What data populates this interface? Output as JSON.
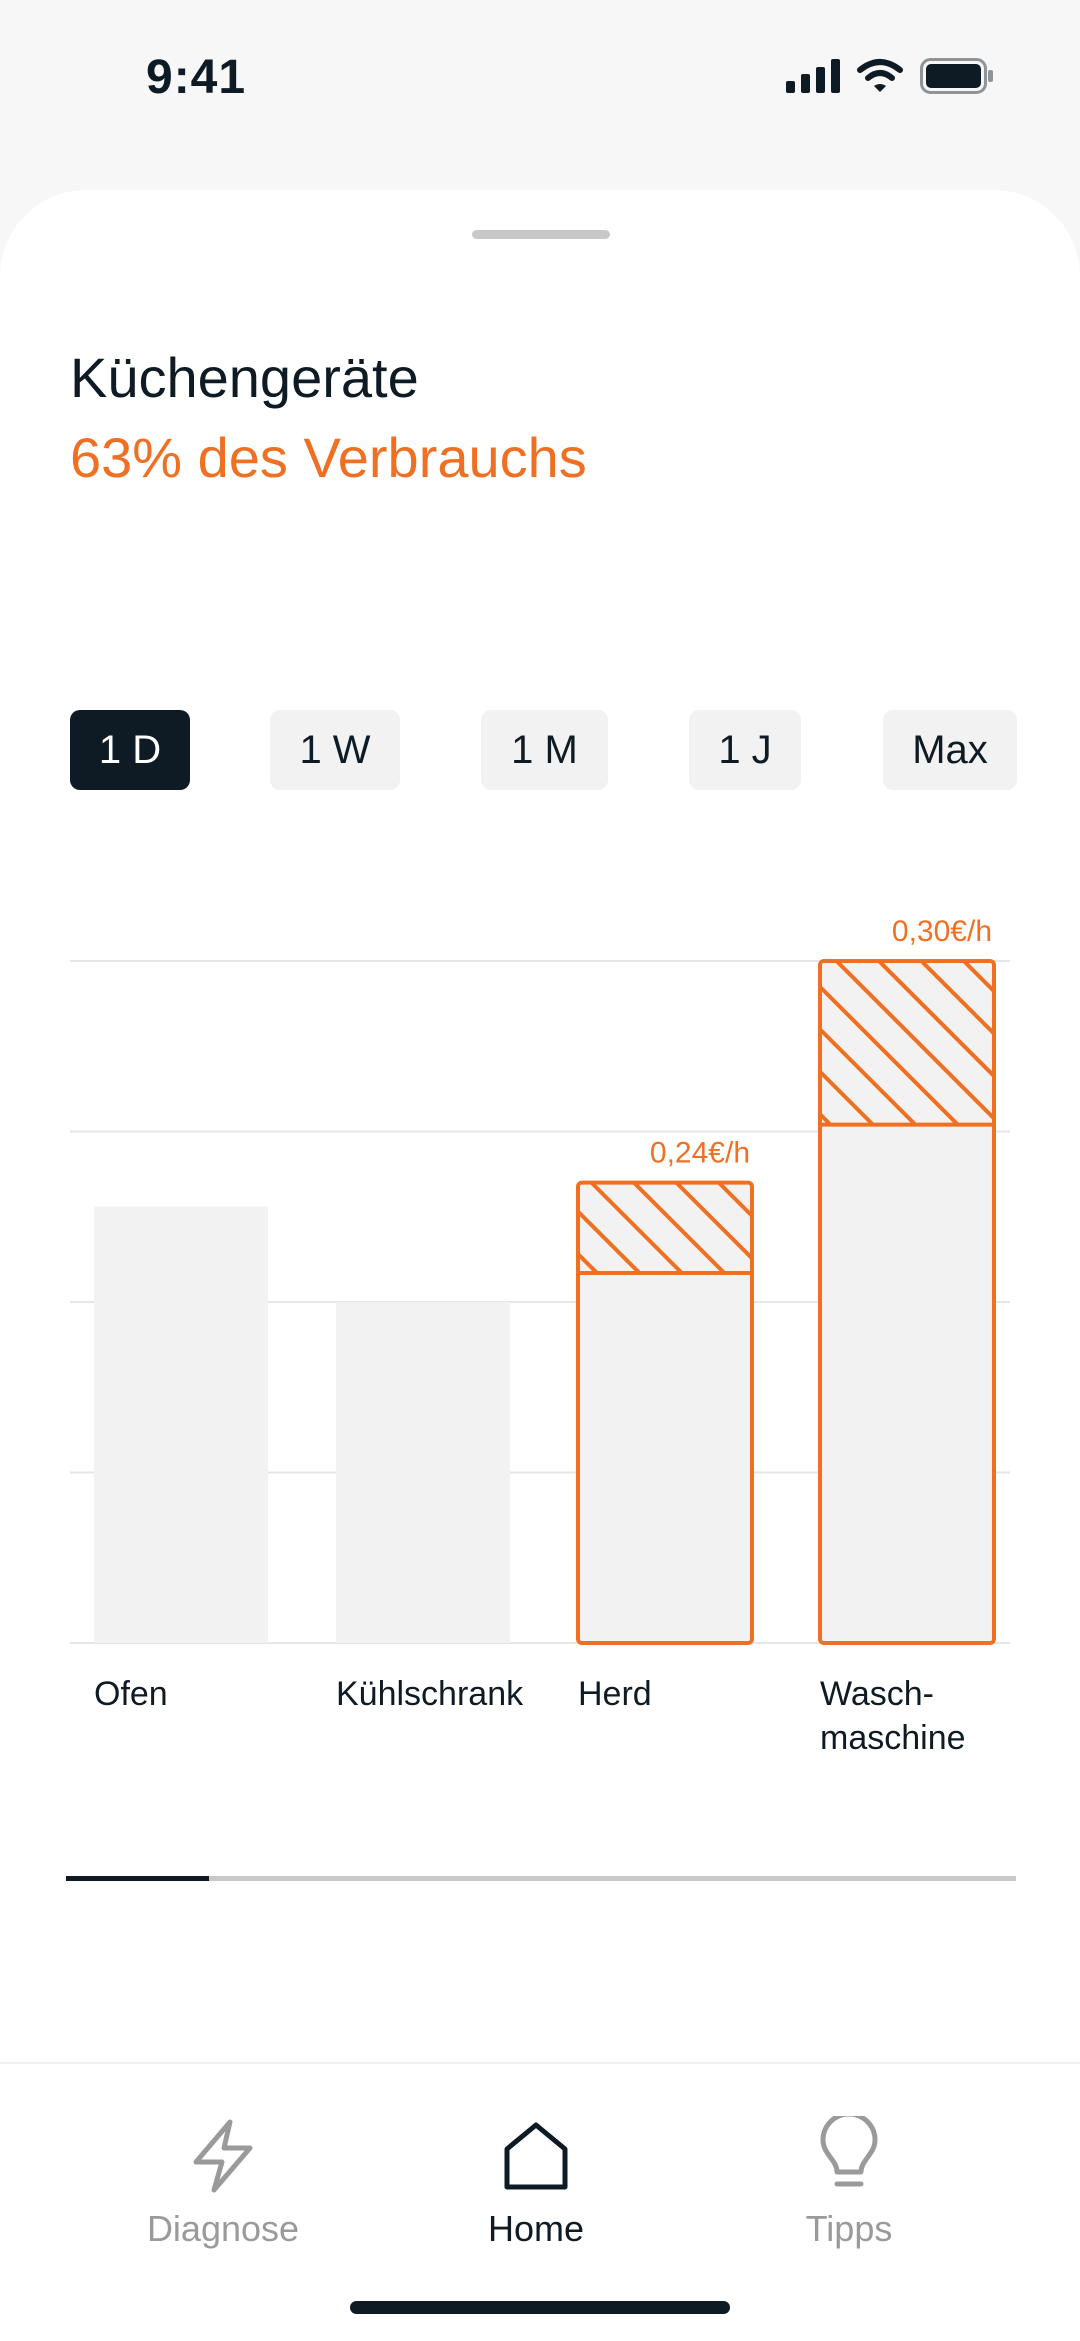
{
  "status_bar": {
    "time": "9:41"
  },
  "header": {
    "title": "Küchengeräte",
    "subtitle": "63% des Verbrauchs"
  },
  "periods": [
    {
      "label": "1 D",
      "active": true
    },
    {
      "label": "1 W",
      "active": false
    },
    {
      "label": "1 M",
      "active": false
    },
    {
      "label": "1 J",
      "active": false
    },
    {
      "label": "Max",
      "active": false
    }
  ],
  "chart_data": {
    "type": "bar",
    "categories": [
      "Ofen",
      "Kühlschrank",
      "Herd",
      "Wasch-\nmaschine"
    ],
    "ylim": [
      0,
      4
    ],
    "grid": true,
    "series": [
      {
        "values": [
          2.56,
          2.0,
          2.17,
          3.04
        ]
      },
      {
        "values": [
          0,
          0,
          0.53,
          0.96
        ]
      }
    ],
    "highlighted": [
      false,
      false,
      true,
      true
    ],
    "data_labels": [
      "",
      "",
      "0,24€/h",
      "0,30€/h"
    ],
    "colors": {
      "base": "#f2f2f2",
      "highlight": "#f07023",
      "grid": "#e6e6e6"
    }
  },
  "progress": {
    "fraction": 0.15
  },
  "tabbar": {
    "items": [
      {
        "label": "Diagnose",
        "icon": "lightning-icon",
        "active": false
      },
      {
        "label": "Home",
        "icon": "home-icon",
        "active": true
      },
      {
        "label": "Tipps",
        "icon": "lightbulb-icon",
        "active": false
      }
    ]
  },
  "colors": {
    "accent": "#f07023",
    "dark": "#0f1b24",
    "inactive": "#9a9a9a"
  }
}
